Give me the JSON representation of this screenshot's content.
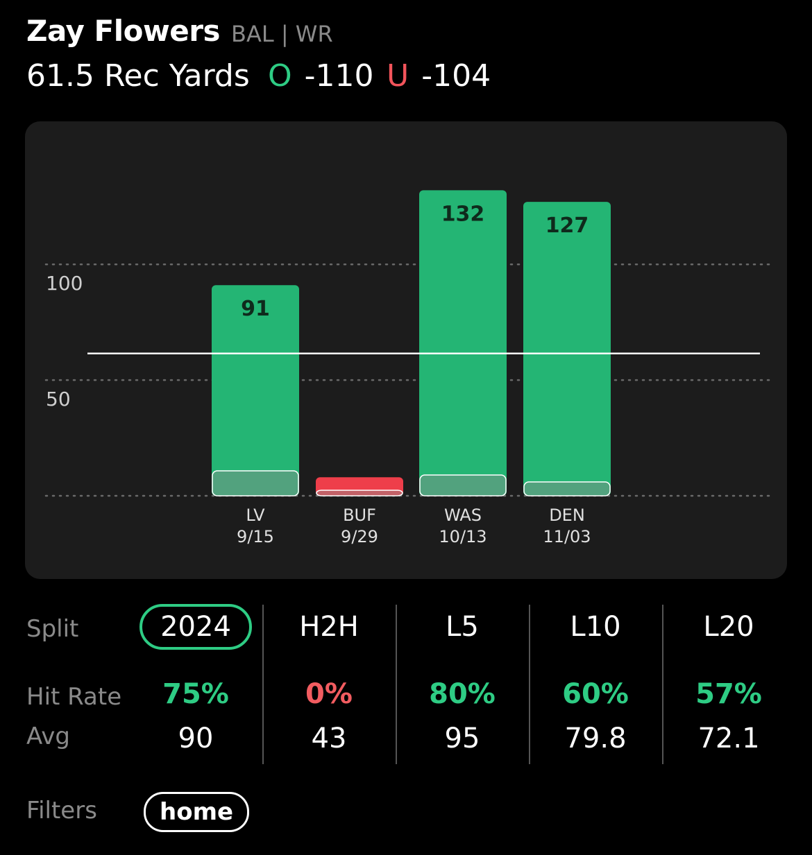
{
  "header": {
    "player_name": "Zay Flowers",
    "team_position": "BAL | WR",
    "prop_line": "61.5 Rec Yards",
    "over": {
      "letter": "O",
      "odds": "-110",
      "color": "#2ecc84"
    },
    "under": {
      "letter": "U",
      "odds": "-104",
      "color": "#f2545b"
    }
  },
  "chart_data": {
    "type": "bar",
    "categories": [
      "LV",
      "BUF",
      "WAS",
      "DEN"
    ],
    "dates": [
      "9/15",
      "9/29",
      "10/13",
      "11/03"
    ],
    "values": [
      91,
      8,
      132,
      127
    ],
    "data_labels": [
      "91",
      "",
      "132",
      "127"
    ],
    "y_ticks": [
      0,
      50,
      100
    ],
    "y_tick_labels": [
      "",
      "50",
      "100"
    ],
    "ylim": [
      0,
      132
    ],
    "threshold": 61.5,
    "hit_color": "#24b574",
    "miss_color": "#ee3e4a",
    "grid": "dotted"
  },
  "splits": {
    "label": "Split",
    "hit_rate_label": "Hit Rate",
    "avg_label": "Avg",
    "columns": [
      {
        "name": "2024",
        "hit_rate": "75%",
        "avg": "90",
        "hit_color": "#2ecc84",
        "selected": true
      },
      {
        "name": "H2H",
        "hit_rate": "0%",
        "avg": "43",
        "hit_color": "#f25c60",
        "selected": false
      },
      {
        "name": "L5",
        "hit_rate": "80%",
        "avg": "95",
        "hit_color": "#2ecc84",
        "selected": false
      },
      {
        "name": "L10",
        "hit_rate": "60%",
        "avg": "79.8",
        "hit_color": "#2ecc84",
        "selected": false
      },
      {
        "name": "L20",
        "hit_rate": "57%",
        "avg": "72.1",
        "hit_color": "#2ecc84",
        "selected": false
      }
    ]
  },
  "filters": {
    "label": "Filters",
    "chip": "home"
  }
}
